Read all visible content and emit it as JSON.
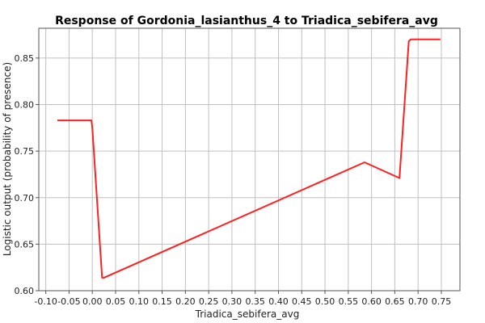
{
  "chart_data": {
    "type": "line",
    "title": "Response of Gordonia_lasianthus_4 to Triadica_sebifera_avg",
    "xlabel": "Triadica_sebifera_avg",
    "ylabel": "Logistic output (probability of presence)",
    "xlim": [
      -0.115,
      0.79
    ],
    "ylim": [
      0.6,
      0.882
    ],
    "x_ticks": [
      -0.1,
      -0.05,
      0.0,
      0.05,
      0.1,
      0.15,
      0.2,
      0.25,
      0.3,
      0.35,
      0.4,
      0.45,
      0.5,
      0.55,
      0.6,
      0.65,
      0.7,
      0.75
    ],
    "x_tick_labels": [
      "-0.10",
      "-0.05",
      "0.00",
      "0.05",
      "0.10",
      "0.15",
      "0.20",
      "0.25",
      "0.30",
      "0.35",
      "0.40",
      "0.45",
      "0.50",
      "0.55",
      "0.60",
      "0.65",
      "0.70",
      "0.75"
    ],
    "y_ticks": [
      0.6,
      0.65,
      0.7,
      0.75,
      0.8,
      0.85
    ],
    "y_tick_labels": [
      "0.60",
      "0.65",
      "0.70",
      "0.75",
      "0.80",
      "0.85"
    ],
    "grid": true,
    "series": [
      {
        "color": "#ff2020",
        "x": [
          -0.075,
          -0.002,
          0.0,
          0.021,
          0.025,
          0.585,
          0.66,
          0.68,
          0.684,
          0.748
        ],
        "y": [
          0.783,
          0.783,
          0.775,
          0.614,
          0.614,
          0.738,
          0.721,
          0.868,
          0.87,
          0.87
        ]
      }
    ]
  }
}
